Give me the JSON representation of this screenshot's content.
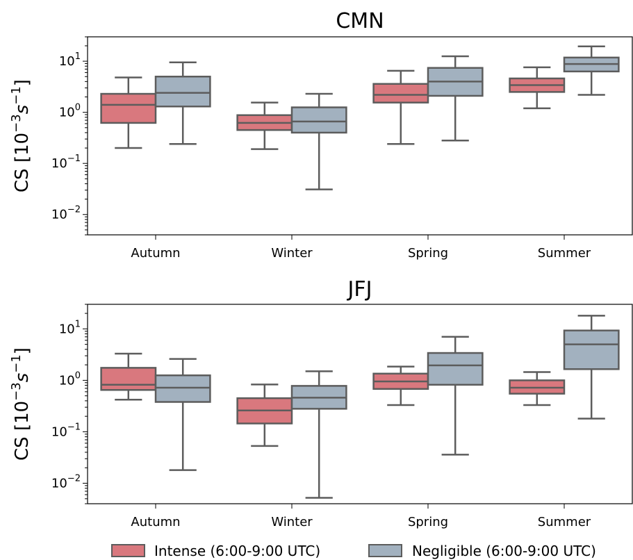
{
  "chart_data": [
    {
      "type": "box",
      "title": "CMN",
      "ylabel_prefix": "CS [10",
      "ylabel_sup": "−3",
      "ylabel_unit": "s",
      "ylabel_unit_sup": "−1",
      "ylabel_suffix": "]",
      "yscale": "log",
      "ylim": [
        0.004,
        30
      ],
      "yticks": [
        {
          "value": 0.01,
          "base": "10",
          "exp": "−2"
        },
        {
          "value": 0.1,
          "base": "10",
          "exp": "−1"
        },
        {
          "value": 1,
          "base": "10",
          "exp": "0"
        },
        {
          "value": 10,
          "base": "10",
          "exp": "1"
        }
      ],
      "categories": [
        "Autumn",
        "Winter",
        "Spring",
        "Summer"
      ],
      "series": [
        {
          "name": "Intense (6:00-9:00 UTC)",
          "boxes": [
            {
              "whislo": 0.2,
              "q1": 0.62,
              "med": 1.4,
              "q3": 2.3,
              "whishi": 4.8
            },
            {
              "whislo": 0.19,
              "q1": 0.45,
              "med": 0.62,
              "q3": 0.88,
              "whishi": 1.55
            },
            {
              "whislo": 0.24,
              "q1": 1.55,
              "med": 2.2,
              "q3": 3.6,
              "whishi": 6.5
            },
            {
              "whislo": 1.2,
              "q1": 2.5,
              "med": 3.4,
              "q3": 4.6,
              "whishi": 7.6
            }
          ]
        },
        {
          "name": "Negligible (6:00-9:00 UTC)",
          "boxes": [
            {
              "whislo": 0.24,
              "q1": 1.3,
              "med": 2.4,
              "q3": 5.0,
              "whishi": 9.5
            },
            {
              "whislo": 0.031,
              "q1": 0.4,
              "med": 0.66,
              "q3": 1.25,
              "whishi": 2.3
            },
            {
              "whislo": 0.28,
              "q1": 2.1,
              "med": 4.0,
              "q3": 7.4,
              "whishi": 12.5
            },
            {
              "whislo": 2.2,
              "q1": 6.3,
              "med": 8.8,
              "q3": 11.8,
              "whishi": 19.5
            }
          ]
        }
      ]
    },
    {
      "type": "box",
      "title": "JFJ",
      "ylabel_prefix": "CS [10",
      "ylabel_sup": "−3",
      "ylabel_unit": "s",
      "ylabel_unit_sup": "−1",
      "ylabel_suffix": "]",
      "yscale": "log",
      "ylim": [
        0.004,
        30
      ],
      "yticks": [
        {
          "value": 0.01,
          "base": "10",
          "exp": "−2"
        },
        {
          "value": 0.1,
          "base": "10",
          "exp": "−1"
        },
        {
          "value": 1,
          "base": "10",
          "exp": "0"
        },
        {
          "value": 10,
          "base": "10",
          "exp": "1"
        }
      ],
      "categories": [
        "Autumn",
        "Winter",
        "Spring",
        "Summer"
      ],
      "series": [
        {
          "name": "Intense (6:00-9:00 UTC)",
          "boxes": [
            {
              "whislo": 0.42,
              "q1": 0.65,
              "med": 0.82,
              "q3": 1.75,
              "whishi": 3.3
            },
            {
              "whislo": 0.053,
              "q1": 0.145,
              "med": 0.26,
              "q3": 0.45,
              "whishi": 0.83
            },
            {
              "whislo": 0.33,
              "q1": 0.68,
              "med": 0.95,
              "q3": 1.35,
              "whishi": 1.85
            },
            {
              "whislo": 0.33,
              "q1": 0.55,
              "med": 0.72,
              "q3": 1.0,
              "whishi": 1.45
            }
          ]
        },
        {
          "name": "Negligible (6:00-9:00 UTC)",
          "boxes": [
            {
              "whislo": 0.018,
              "q1": 0.38,
              "med": 0.72,
              "q3": 1.25,
              "whishi": 2.6
            },
            {
              "whislo": 0.0052,
              "q1": 0.28,
              "med": 0.46,
              "q3": 0.78,
              "whishi": 1.5
            },
            {
              "whislo": 0.036,
              "q1": 0.82,
              "med": 1.95,
              "q3": 3.4,
              "whishi": 7.0
            },
            {
              "whislo": 0.18,
              "q1": 1.65,
              "med": 5.0,
              "q3": 9.3,
              "whishi": 18.0
            }
          ]
        }
      ]
    }
  ],
  "legend": [
    {
      "label": "Intense (6:00-9:00 UTC)",
      "color": "#d9787e"
    },
    {
      "label": "Negligible (6:00-9:00 UTC)",
      "color": "#a2b1bf"
    }
  ],
  "colors": {
    "intense": "#d9787e",
    "negligible": "#a2b1bf",
    "edge": "#5c5c5c"
  }
}
